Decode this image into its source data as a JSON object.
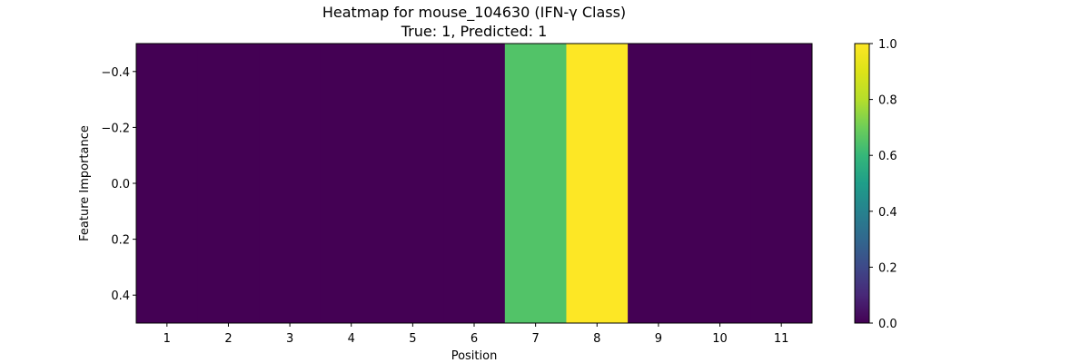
{
  "chart_data": {
    "type": "heatmap",
    "title": "Heatmap for mouse_104630 (IFN-γ Class)",
    "subtitle": "True: 1, Predicted: 1",
    "xlabel": "Position",
    "ylabel": "Feature Importance",
    "x_categories": [
      "1",
      "2",
      "3",
      "4",
      "5",
      "6",
      "7",
      "8",
      "9",
      "10",
      "11"
    ],
    "y_ticks": [
      "-0.4",
      "-0.2",
      "0.0",
      "0.2",
      "0.4"
    ],
    "y_tick_values": [
      -0.4,
      -0.2,
      0.0,
      0.2,
      0.4
    ],
    "ylim": [
      0.5,
      -0.5
    ],
    "values": [
      [
        0.0,
        0.0,
        0.0,
        0.0,
        0.0,
        0.0,
        0.65,
        1.0,
        0.0,
        0.0,
        0.0
      ]
    ],
    "colormap": "viridis",
    "colorbar": {
      "range": [
        0.0,
        1.0
      ],
      "ticks": [
        "0.0",
        "0.2",
        "0.4",
        "0.6",
        "0.8",
        "1.0"
      ],
      "tick_values": [
        0.0,
        0.2,
        0.4,
        0.6,
        0.8,
        1.0
      ]
    }
  }
}
